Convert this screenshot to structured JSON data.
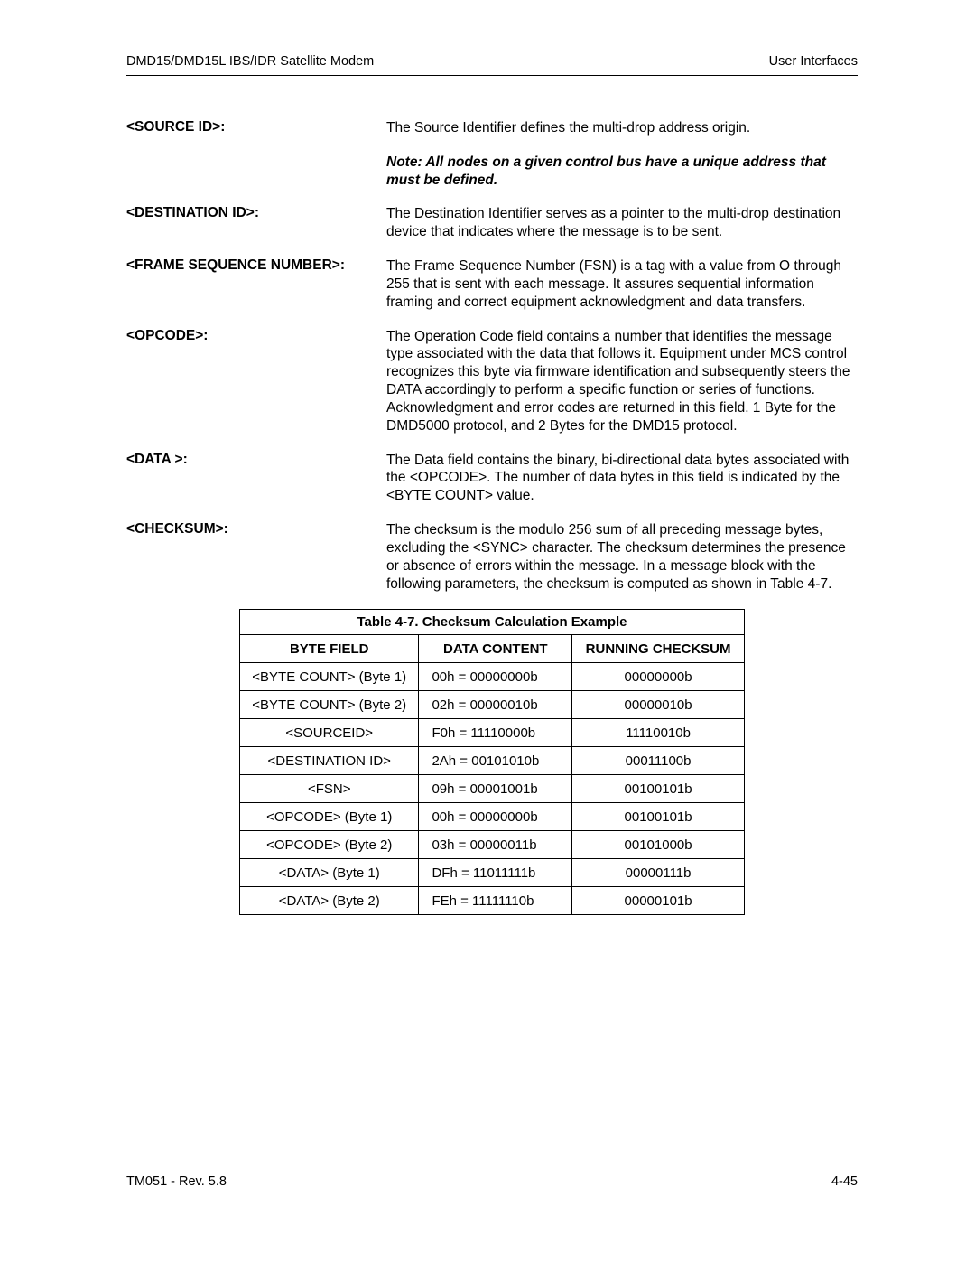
{
  "header": {
    "left": "DMD15/DMD15L IBS/IDR Satellite Modem",
    "right": "User Interfaces"
  },
  "definitions": [
    {
      "label": "<SOURCE ID>:",
      "desc": "The Source Identifier defines the multi-drop address origin."
    },
    {
      "label": "",
      "desc_note": "Note: All nodes on a given control bus have a unique address that must be defined."
    },
    {
      "label": "<DESTINATION ID>:",
      "desc": "The Destination Identifier serves as a pointer to the multi-drop destination device that indicates where the message is to be sent."
    },
    {
      "label": "<FRAME SEQUENCE NUMBER>:",
      "desc": "The Frame Sequence Number (FSN) is a tag with a value from O through 255 that is sent with each message. It assures sequential information framing and correct equipment acknowledgment and data transfers."
    },
    {
      "label": "<OPCODE>:",
      "desc": "The Operation Code field contains a number that identifies the message type associated with the data that follows it. Equipment under MCS control recognizes this byte via firmware identification and subsequently steers the DATA accordingly to perform a specific function or series of functions. Acknowledgment and error codes are returned in this field. 1 Byte for the DMD5000 protocol, and 2 Bytes for the DMD15 protocol."
    },
    {
      "label": "<DATA >:",
      "desc": "The Data field contains the binary, bi-directional data bytes associated with the <OPCODE>. The number of data bytes in this field is indicated by the <BYTE COUNT> value."
    },
    {
      "label": "<CHECKSUM>:",
      "desc": "The checksum is the modulo 256 sum of all preceding message bytes, excluding the <SYNC> character. The checksum determines the presence or absence of errors within the message. In a message block with the following parameters, the checksum is computed as shown in Table 4-7."
    }
  ],
  "table": {
    "caption": "Table 4-7. Checksum Calculation Example",
    "columns": [
      "BYTE FIELD",
      "DATA CONTENT",
      "RUNNING CHECKSUM"
    ],
    "rows": [
      [
        "<BYTE COUNT> (Byte 1)",
        "00h = 00000000b",
        "00000000b"
      ],
      [
        "<BYTE COUNT> (Byte 2)",
        "02h = 00000010b",
        "00000010b"
      ],
      [
        "<SOURCEID>",
        "F0h = 11110000b",
        "11110010b"
      ],
      [
        "<DESTINATION ID>",
        "2Ah = 00101010b",
        "00011100b"
      ],
      [
        "<FSN>",
        "09h = 00001001b",
        "00100101b"
      ],
      [
        "<OPCODE> (Byte 1)",
        "00h = 00000000b",
        "00100101b"
      ],
      [
        "<OPCODE> (Byte 2)",
        "03h = 00000011b",
        "00101000b"
      ],
      [
        "<DATA> (Byte 1)",
        "DFh = 11011111b",
        "00000111b"
      ],
      [
        "<DATA> (Byte 2)",
        "FEh = 11111110b",
        "00000101b"
      ]
    ]
  },
  "footer": {
    "left": "TM051 - Rev. 5.8",
    "right": "4-45"
  }
}
